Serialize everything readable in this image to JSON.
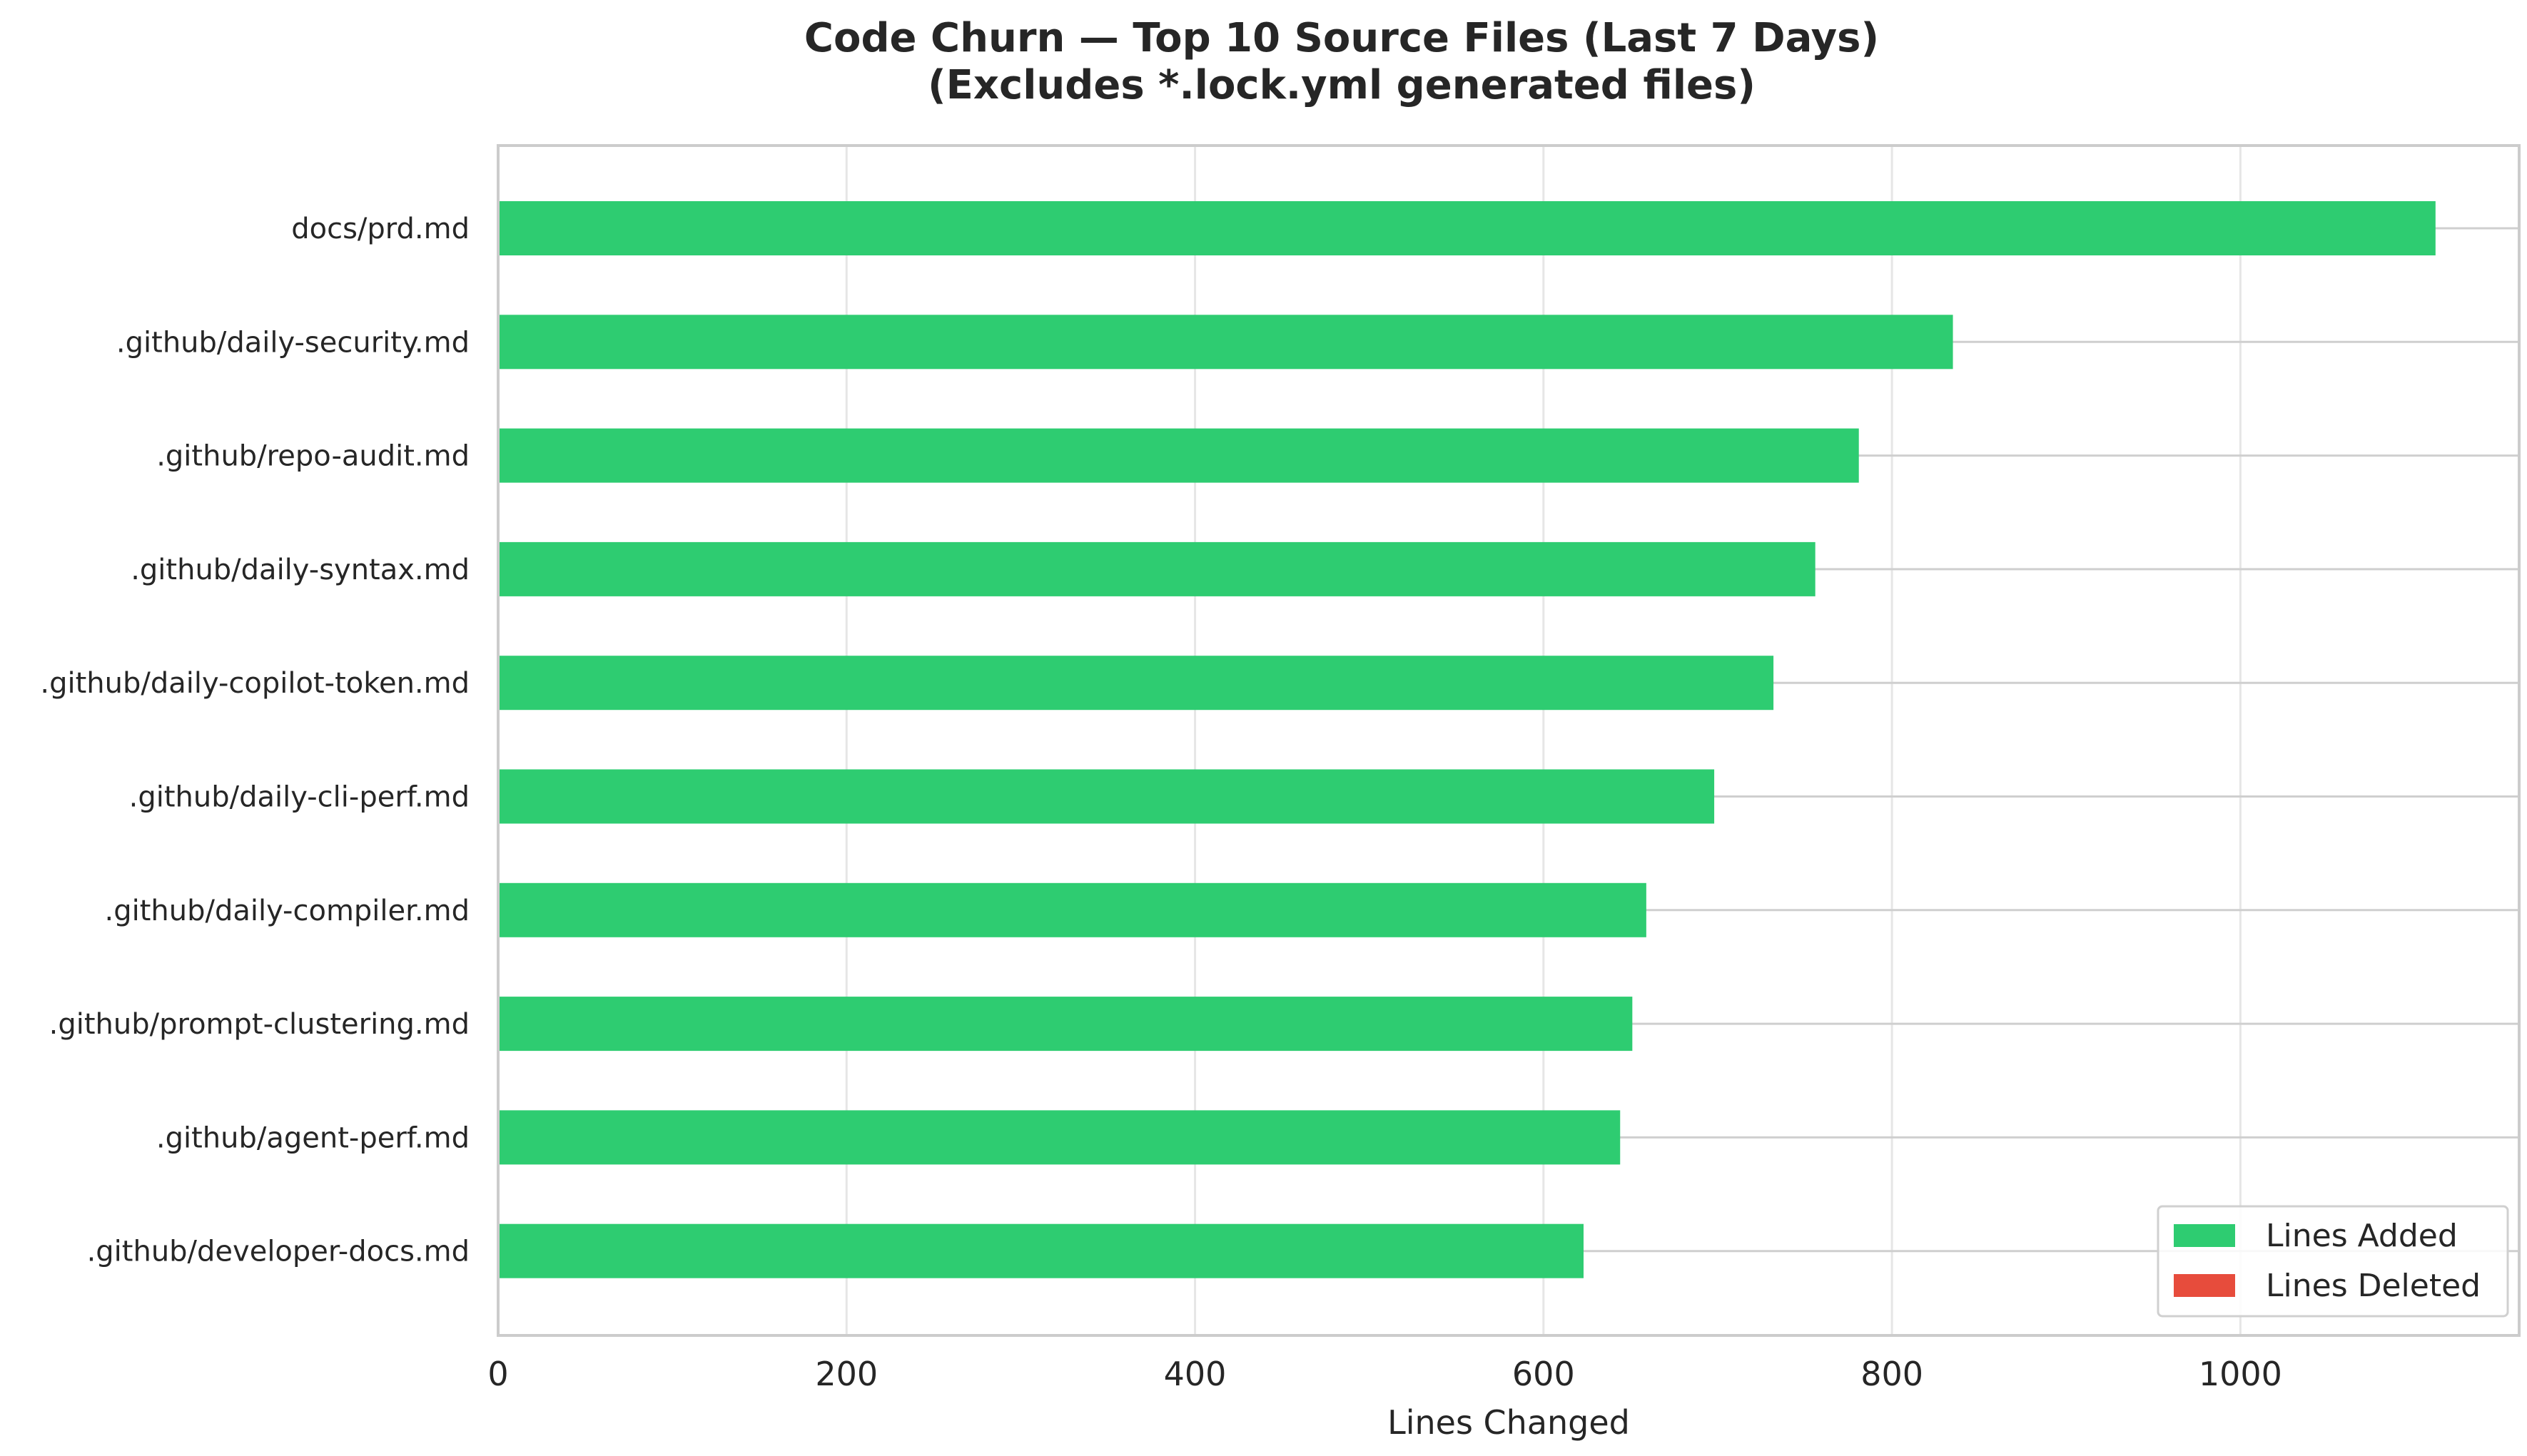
{
  "chart_data": {
    "type": "bar",
    "orientation": "horizontal",
    "stacked": true,
    "title": "Code Churn — Top 10 Source Files (Last 7 Days)",
    "subtitle": "(Excludes *.lock.yml generated files)",
    "xlabel": "Lines Changed",
    "ylabel": "",
    "xlim": [
      0,
      1160
    ],
    "xticks": [
      0,
      200,
      400,
      600,
      800,
      1000
    ],
    "grid": true,
    "legend_position": "bottom-right",
    "categories": [
      "docs/prd.md",
      ".github/daily-security.md",
      ".github/repo-audit.md",
      ".github/daily-syntax.md",
      ".github/daily-copilot-token.md",
      ".github/daily-cli-perf.md",
      ".github/daily-compiler.md",
      ".github/prompt-clustering.md",
      ".github/agent-perf.md",
      ".github/developer-docs.md"
    ],
    "series": [
      {
        "name": "Lines Added",
        "color": "#2ecc71",
        "values": [
          1112,
          835,
          781,
          756,
          732,
          698,
          659,
          651,
          644,
          623
        ]
      },
      {
        "name": "Lines Deleted",
        "color": "#e74c3c",
        "values": [
          0,
          0,
          0,
          0,
          0,
          0,
          0,
          0,
          0,
          0
        ]
      }
    ]
  }
}
